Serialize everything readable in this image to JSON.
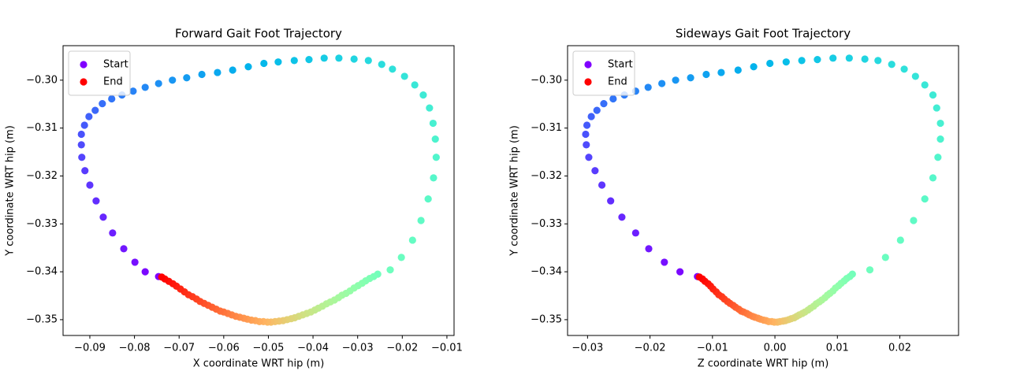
{
  "chart_data": [
    {
      "type": "scatter",
      "title": "Forward Gait Foot Trajectory",
      "x_label": "X coordinate WRT hip (m)",
      "y_label": "Y coordinate WRT hip (m)",
      "colormap": "rainbow",
      "legend_position": "upper left",
      "legend": [
        {
          "name": "Start",
          "color": "#8000ff"
        },
        {
          "name": "End",
          "color": "#ff0000"
        }
      ],
      "xlim": [
        -0.096,
        -0.0084
      ],
      "ylim": [
        -0.3533,
        -0.2928
      ],
      "xticks": [
        {
          "value": -0.09,
          "label": "−0.09"
        },
        {
          "value": -0.08,
          "label": "−0.08"
        },
        {
          "value": -0.07,
          "label": "−0.07"
        },
        {
          "value": -0.06,
          "label": "−0.06"
        },
        {
          "value": -0.05,
          "label": "−0.05"
        },
        {
          "value": -0.04,
          "label": "−0.04"
        },
        {
          "value": -0.03,
          "label": "−0.03"
        },
        {
          "value": -0.02,
          "label": "−0.02"
        },
        {
          "value": -0.01,
          "label": "−0.01"
        }
      ],
      "yticks": [
        {
          "value": -0.35,
          "label": "−0.35"
        },
        {
          "value": -0.34,
          "label": "−0.34"
        },
        {
          "value": -0.33,
          "label": "−0.33"
        },
        {
          "value": -0.32,
          "label": "−0.32"
        },
        {
          "value": -0.31,
          "label": "−0.31"
        },
        {
          "value": -0.3,
          "label": "−0.30"
        }
      ],
      "x": [
        -0.0746,
        -0.0776,
        -0.0799,
        -0.0824,
        -0.0849,
        -0.087,
        -0.0886,
        -0.09,
        -0.0911,
        -0.0918,
        -0.0919,
        -0.0919,
        -0.0912,
        -0.0902,
        -0.0888,
        -0.0872,
        -0.0851,
        -0.0828,
        -0.0803,
        -0.0776,
        -0.0746,
        -0.0715,
        -0.0683,
        -0.0649,
        -0.0614,
        -0.058,
        -0.0545,
        -0.051,
        -0.0478,
        -0.0442,
        -0.0409,
        -0.0375,
        -0.0342,
        -0.0308,
        -0.0276,
        -0.0246,
        -0.0222,
        -0.0195,
        -0.0172,
        -0.0153,
        -0.0139,
        -0.0131,
        -0.0126,
        -0.0124,
        -0.013,
        -0.0142,
        -0.0158,
        -0.0177,
        -0.0202,
        -0.0227,
        -0.0255,
        -0.0264,
        -0.0273,
        -0.0282,
        -0.029,
        -0.0299,
        -0.0308,
        -0.0317,
        -0.0326,
        -0.0335,
        -0.0343,
        -0.0352,
        -0.0361,
        -0.037,
        -0.0379,
        -0.0388,
        -0.0396,
        -0.0405,
        -0.0414,
        -0.0423,
        -0.0432,
        -0.0441,
        -0.0449,
        -0.0458,
        -0.0467,
        -0.0476,
        -0.0485,
        -0.0494,
        -0.0502,
        -0.0511,
        -0.052,
        -0.0529,
        -0.0538,
        -0.0547,
        -0.0555,
        -0.0564,
        -0.0573,
        -0.0582,
        -0.0591,
        -0.06,
        -0.0608,
        -0.0617,
        -0.0626,
        -0.0635,
        -0.0644,
        -0.0653,
        -0.0661,
        -0.067,
        -0.0679,
        -0.0688,
        -0.0697,
        -0.0706,
        -0.0714,
        -0.0723,
        -0.0732,
        -0.0739
      ],
      "y": [
        -0.341,
        -0.34,
        -0.338,
        -0.3352,
        -0.3319,
        -0.3286,
        -0.3252,
        -0.3219,
        -0.3189,
        -0.3161,
        -0.3135,
        -0.3113,
        -0.3094,
        -0.3076,
        -0.3063,
        -0.3049,
        -0.3039,
        -0.3031,
        -0.3023,
        -0.3015,
        -0.3007,
        -0.3,
        -0.2995,
        -0.2988,
        -0.2984,
        -0.2979,
        -0.2972,
        -0.2965,
        -0.2962,
        -0.2959,
        -0.2957,
        -0.2954,
        -0.2954,
        -0.2956,
        -0.2959,
        -0.2967,
        -0.2977,
        -0.2992,
        -0.301,
        -0.3031,
        -0.3058,
        -0.309,
        -0.3123,
        -0.3161,
        -0.3204,
        -0.3248,
        -0.3293,
        -0.3334,
        -0.337,
        -0.3396,
        -0.3405,
        -0.341,
        -0.3414,
        -0.3419,
        -0.3424,
        -0.3429,
        -0.3434,
        -0.344,
        -0.3445,
        -0.3449,
        -0.3454,
        -0.3459,
        -0.3463,
        -0.3467,
        -0.3472,
        -0.3476,
        -0.348,
        -0.3484,
        -0.3487,
        -0.349,
        -0.3493,
        -0.3496,
        -0.3498,
        -0.35,
        -0.3502,
        -0.3503,
        -0.3504,
        -0.3505,
        -0.3505,
        -0.3504,
        -0.3504,
        -0.3502,
        -0.3501,
        -0.3499,
        -0.3497,
        -0.3495,
        -0.3493,
        -0.349,
        -0.3487,
        -0.3484,
        -0.3482,
        -0.3478,
        -0.3474,
        -0.347,
        -0.3466,
        -0.3462,
        -0.3457,
        -0.3452,
        -0.3448,
        -0.3442,
        -0.3436,
        -0.343,
        -0.3425,
        -0.342,
        -0.3415,
        -0.3411
      ]
    },
    {
      "type": "scatter",
      "title": "Sideways Gait Foot Trajectory",
      "x_label": "Z coordinate WRT hip (m)",
      "y_label": "Y coordinate WRT hip (m)",
      "colormap": "rainbow",
      "legend_position": "upper left",
      "legend": [
        {
          "name": "Start",
          "color": "#8000ff"
        },
        {
          "name": "End",
          "color": "#ff0000"
        }
      ],
      "xlim": [
        -0.0332,
        0.0294
      ],
      "ylim": [
        -0.3533,
        -0.2928
      ],
      "xticks": [
        {
          "value": -0.03,
          "label": "−0.03"
        },
        {
          "value": -0.02,
          "label": "−0.02"
        },
        {
          "value": -0.01,
          "label": "−0.01"
        },
        {
          "value": 0,
          "label": "0.00"
        },
        0.01,
        0.02
      ],
      "yticks": [
        {
          "value": -0.35,
          "label": "−0.35"
        },
        {
          "value": -0.34,
          "label": "−0.34"
        },
        {
          "value": -0.33,
          "label": "−0.33"
        },
        {
          "value": -0.32,
          "label": "−0.32"
        },
        {
          "value": -0.31,
          "label": "−0.31"
        },
        {
          "value": -0.3,
          "label": "−0.30"
        }
      ],
      "x": [
        -0.0124,
        -0.0152,
        -0.0177,
        -0.0202,
        -0.0223,
        -0.0245,
        -0.0263,
        -0.0277,
        -0.0288,
        -0.0298,
        -0.0302,
        -0.0303,
        -0.0301,
        -0.0294,
        -0.0285,
        -0.0274,
        -0.0259,
        -0.0241,
        -0.0223,
        -0.0203,
        -0.0181,
        -0.0159,
        -0.0135,
        -0.011,
        -0.0086,
        -0.0059,
        -0.0034,
        -0.0008,
        0.0018,
        0.0043,
        0.0068,
        0.0093,
        0.0119,
        0.0144,
        0.0165,
        0.0187,
        0.0207,
        0.0225,
        0.024,
        0.0253,
        0.0259,
        0.0265,
        0.0265,
        0.0261,
        0.0253,
        0.024,
        0.0222,
        0.0201,
        0.0177,
        0.0152,
        0.0124,
        0.012,
        0.0115,
        0.0111,
        0.0106,
        0.0102,
        0.0097,
        0.0093,
        0.0088,
        0.0084,
        0.008,
        0.0075,
        0.0071,
        0.0066,
        0.0062,
        0.0057,
        0.0053,
        0.0048,
        0.0044,
        0.0039,
        0.0035,
        0.0031,
        0.0026,
        0.0022,
        0.0017,
        0.0013,
        0.0008,
        0.0004,
        -0.0001,
        -0.0005,
        -0.001,
        -0.0014,
        -0.0018,
        -0.0023,
        -0.0027,
        -0.0032,
        -0.0036,
        -0.0041,
        -0.0045,
        -0.005,
        -0.0054,
        -0.0058,
        -0.0063,
        -0.0067,
        -0.0072,
        -0.0076,
        -0.0081,
        -0.0085,
        -0.009,
        -0.0094,
        -0.0099,
        -0.0103,
        -0.0107,
        -0.0112,
        -0.0116,
        -0.0121
      ],
      "y": [
        -0.341,
        -0.34,
        -0.338,
        -0.3352,
        -0.3319,
        -0.3286,
        -0.3252,
        -0.3219,
        -0.3189,
        -0.3161,
        -0.3135,
        -0.3113,
        -0.3094,
        -0.3076,
        -0.3063,
        -0.3049,
        -0.3039,
        -0.3031,
        -0.3023,
        -0.3015,
        -0.3007,
        -0.3,
        -0.2995,
        -0.2988,
        -0.2984,
        -0.2979,
        -0.2972,
        -0.2965,
        -0.2962,
        -0.2959,
        -0.2957,
        -0.2954,
        -0.2954,
        -0.2956,
        -0.2959,
        -0.2967,
        -0.2977,
        -0.2992,
        -0.301,
        -0.3031,
        -0.3058,
        -0.309,
        -0.3123,
        -0.3161,
        -0.3204,
        -0.3248,
        -0.3293,
        -0.3334,
        -0.337,
        -0.3396,
        -0.3405,
        -0.341,
        -0.3414,
        -0.3419,
        -0.3424,
        -0.3429,
        -0.3434,
        -0.344,
        -0.3445,
        -0.3449,
        -0.3454,
        -0.3459,
        -0.3463,
        -0.3467,
        -0.3472,
        -0.3476,
        -0.348,
        -0.3484,
        -0.3487,
        -0.349,
        -0.3493,
        -0.3496,
        -0.3498,
        -0.35,
        -0.3502,
        -0.3503,
        -0.3504,
        -0.3505,
        -0.3505,
        -0.3504,
        -0.3504,
        -0.3502,
        -0.3501,
        -0.3499,
        -0.3497,
        -0.3495,
        -0.3493,
        -0.349,
        -0.3487,
        -0.3484,
        -0.3482,
        -0.3478,
        -0.3474,
        -0.347,
        -0.3466,
        -0.3462,
        -0.3457,
        -0.3452,
        -0.3448,
        -0.3442,
        -0.3436,
        -0.343,
        -0.3425,
        -0.342,
        -0.3415,
        -0.3411
      ]
    }
  ]
}
